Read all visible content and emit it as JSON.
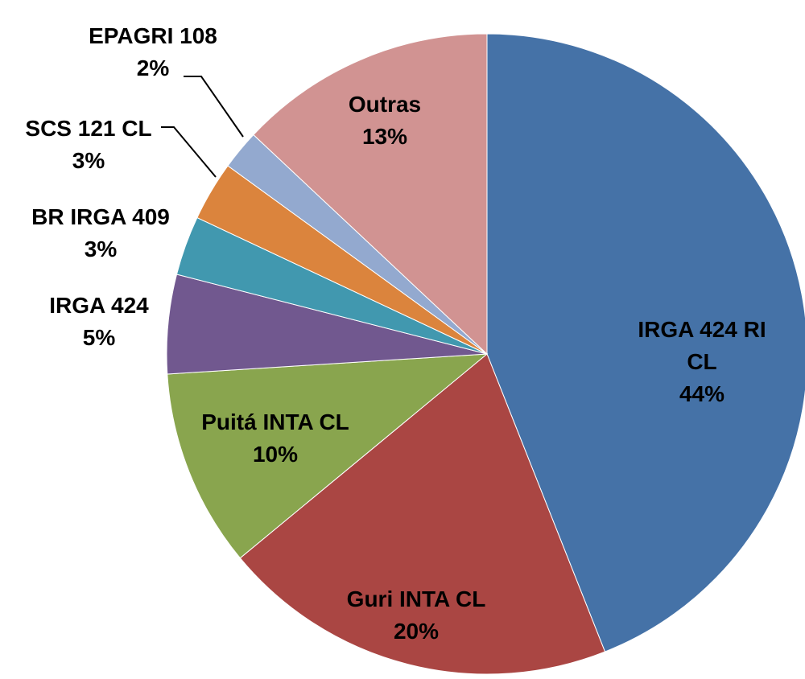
{
  "chart_data": {
    "type": "pie",
    "categories": [
      "IRGA 424 RI CL",
      "Guri INTA CL",
      "Puitá INTA CL",
      "IRGA 424",
      "BR IRGA 409",
      "SCS 121 CL",
      "EPAGRI 108",
      "Outras"
    ],
    "values": [
      44,
      20,
      10,
      5,
      3,
      3,
      2,
      13
    ],
    "value_labels": [
      "44%",
      "20%",
      "10%",
      "5%",
      "3%",
      "3%",
      "2%",
      "13%"
    ],
    "colors": [
      "#4572a7",
      "#aa4643",
      "#89a54e",
      "#71588f",
      "#4198af",
      "#db843d",
      "#93a9cf",
      "#d19392"
    ]
  }
}
